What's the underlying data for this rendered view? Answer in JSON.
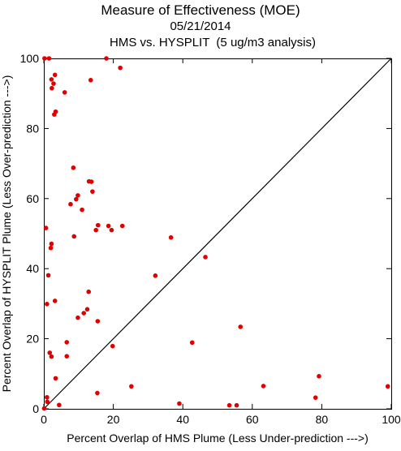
{
  "chart_data": {
    "type": "scatter",
    "title": "Measure of Effectiveness (MOE)",
    "subtitle_lines": [
      "05/21/2014",
      "HMS vs. HYSPLIT  (5 ug/m3 analysis)"
    ],
    "xlabel": "Percent Overlap of HMS Plume (Less Under-prediction --->)",
    "ylabel": "Percent Overlap of HYSPLIT Plume (Less Over-prediction --->)",
    "xlim": [
      0,
      100
    ],
    "ylim": [
      0,
      100
    ],
    "x_ticks": [
      0,
      20,
      40,
      60,
      80,
      100
    ],
    "y_ticks": [
      0,
      20,
      40,
      60,
      80,
      100
    ],
    "x_tick_labels": [
      "0",
      "20",
      "40",
      "60",
      "80",
      "100"
    ],
    "y_tick_labels": [
      "0",
      "20",
      "40",
      "60",
      "80",
      "100"
    ],
    "reference_line": {
      "from": [
        0,
        0
      ],
      "to": [
        100,
        100
      ],
      "color": "#000000"
    },
    "grid": false,
    "legend": "none",
    "point_color": "#e00000",
    "series": [
      {
        "points": [
          {
            "x": 0.2,
            "y": 100
          },
          {
            "x": 1.5,
            "y": 100
          },
          {
            "x": 18.0,
            "y": 100
          },
          {
            "x": 22.0,
            "y": 97.3
          },
          {
            "x": 3.2,
            "y": 95.3
          },
          {
            "x": 13.5,
            "y": 93.8
          },
          {
            "x": 2.2,
            "y": 94.0
          },
          {
            "x": 2.8,
            "y": 92.8
          },
          {
            "x": 2.3,
            "y": 91.5
          },
          {
            "x": 6.0,
            "y": 90.3
          },
          {
            "x": 3.4,
            "y": 84.8
          },
          {
            "x": 3.0,
            "y": 84.0
          },
          {
            "x": 8.5,
            "y": 68.8
          },
          {
            "x": 13.0,
            "y": 64.9
          },
          {
            "x": 13.7,
            "y": 64.8
          },
          {
            "x": 14.0,
            "y": 62.0
          },
          {
            "x": 9.8,
            "y": 60.9
          },
          {
            "x": 9.3,
            "y": 59.8
          },
          {
            "x": 7.7,
            "y": 58.4
          },
          {
            "x": 11.0,
            "y": 56.8
          },
          {
            "x": 15.6,
            "y": 52.4
          },
          {
            "x": 18.6,
            "y": 52.2
          },
          {
            "x": 22.6,
            "y": 52.2
          },
          {
            "x": 15.0,
            "y": 51.0
          },
          {
            "x": 19.5,
            "y": 51.0
          },
          {
            "x": 0.6,
            "y": 51.6
          },
          {
            "x": 8.7,
            "y": 49.2
          },
          {
            "x": 36.6,
            "y": 48.9
          },
          {
            "x": 2.2,
            "y": 47.1
          },
          {
            "x": 2.0,
            "y": 45.9
          },
          {
            "x": 46.5,
            "y": 43.3
          },
          {
            "x": 1.3,
            "y": 38.1
          },
          {
            "x": 32.1,
            "y": 38.0
          },
          {
            "x": 12.9,
            "y": 33.4
          },
          {
            "x": 3.2,
            "y": 30.8
          },
          {
            "x": 0.9,
            "y": 29.9
          },
          {
            "x": 12.5,
            "y": 28.4
          },
          {
            "x": 11.5,
            "y": 27.3
          },
          {
            "x": 9.8,
            "y": 26.0
          },
          {
            "x": 15.5,
            "y": 25.0
          },
          {
            "x": 56.6,
            "y": 23.4
          },
          {
            "x": 6.6,
            "y": 19.0
          },
          {
            "x": 42.7,
            "y": 18.9
          },
          {
            "x": 19.8,
            "y": 17.9
          },
          {
            "x": 1.7,
            "y": 16.0
          },
          {
            "x": 2.2,
            "y": 14.9
          },
          {
            "x": 6.6,
            "y": 15.0
          },
          {
            "x": 79.2,
            "y": 9.3
          },
          {
            "x": 3.4,
            "y": 8.7
          },
          {
            "x": 25.2,
            "y": 6.4
          },
          {
            "x": 63.2,
            "y": 6.5
          },
          {
            "x": 99.0,
            "y": 6.4
          },
          {
            "x": 15.4,
            "y": 4.5
          },
          {
            "x": 78.2,
            "y": 3.2
          },
          {
            "x": 0.9,
            "y": 3.3
          },
          {
            "x": 1.0,
            "y": 2.0
          },
          {
            "x": 4.4,
            "y": 1.1
          },
          {
            "x": 39.0,
            "y": 1.5
          },
          {
            "x": 53.4,
            "y": 1.0
          },
          {
            "x": 55.5,
            "y": 1.0
          },
          {
            "x": 0.1,
            "y": 0.1
          }
        ]
      }
    ]
  }
}
